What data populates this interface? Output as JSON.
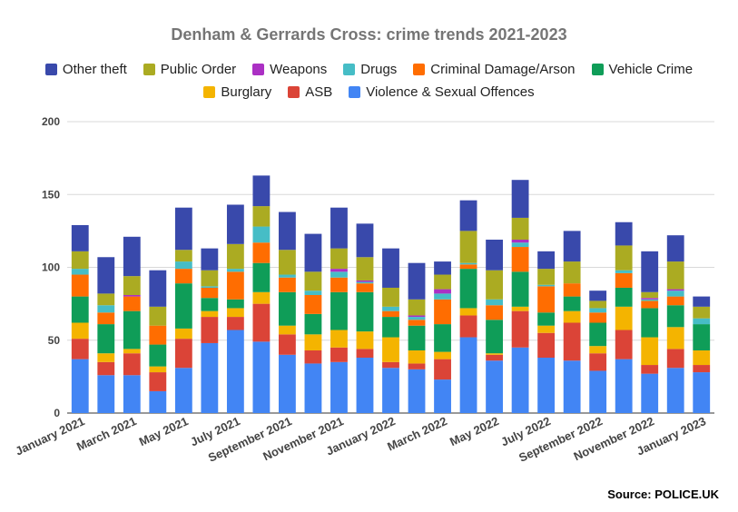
{
  "chart_data": {
    "type": "bar",
    "stacked": true,
    "title": "Denham & Gerrards Cross: crime trends 2021-2023",
    "categories": [
      "January 2021",
      "February 2021",
      "March 2021",
      "April 2021",
      "May 2021",
      "June 2021",
      "July 2021",
      "August 2021",
      "September 2021",
      "October 2021",
      "November 2021",
      "December 2021",
      "January 2022",
      "February 2022",
      "March 2022",
      "April 2022",
      "May 2022",
      "June 2022",
      "July 2022",
      "August 2022",
      "September 2022",
      "October 2022",
      "November 2022",
      "December 2022",
      "January 2023"
    ],
    "shown_tick_labels": [
      "January 2021",
      "March 2021",
      "May 2021",
      "July 2021",
      "September 2021",
      "November 2021",
      "January 2022",
      "March 2022",
      "May 2022",
      "July 2022",
      "September 2022",
      "November 2022",
      "January 2023"
    ],
    "ylim": [
      0,
      200
    ],
    "yticks": [
      0,
      50,
      100,
      150,
      200
    ],
    "grid": true,
    "legend_position": "top",
    "series": [
      {
        "name": "Violence & Sexual Offences",
        "color": "#4285f4",
        "values": [
          37,
          26,
          26,
          15,
          31,
          48,
          57,
          49,
          40,
          34,
          35,
          38,
          31,
          30,
          23,
          52,
          36,
          45,
          38,
          36,
          29,
          37,
          27,
          31,
          28
        ]
      },
      {
        "name": "ASB",
        "color": "#db4437",
        "values": [
          14,
          9,
          15,
          13,
          20,
          18,
          9,
          26,
          14,
          9,
          10,
          6,
          4,
          4,
          14,
          15,
          4,
          25,
          17,
          26,
          12,
          20,
          6,
          13,
          5
        ]
      },
      {
        "name": "Burglary",
        "color": "#f4b400",
        "values": [
          11,
          6,
          3,
          4,
          7,
          4,
          6,
          8,
          6,
          11,
          12,
          12,
          17,
          9,
          5,
          5,
          1,
          3,
          5,
          8,
          5,
          16,
          19,
          15,
          10
        ]
      },
      {
        "name": "Vehicle Crime",
        "color": "#0f9d58",
        "values": [
          18,
          20,
          26,
          15,
          31,
          9,
          6,
          20,
          23,
          14,
          26,
          27,
          14,
          17,
          19,
          27,
          23,
          24,
          9,
          10,
          16,
          13,
          20,
          15,
          18
        ]
      },
      {
        "name": "Criminal Damage/Arson",
        "color": "#ff6d01",
        "values": [
          15,
          8,
          10,
          13,
          10,
          7,
          19,
          14,
          10,
          13,
          10,
          6,
          4,
          4,
          17,
          3,
          10,
          17,
          18,
          9,
          7,
          10,
          5,
          6,
          0
        ]
      },
      {
        "name": "Drugs",
        "color": "#46bdc6",
        "values": [
          4,
          5,
          0,
          0,
          5,
          1,
          2,
          11,
          2,
          3,
          4,
          1,
          3,
          2,
          4,
          1,
          4,
          3,
          1,
          0,
          3,
          2,
          1,
          4,
          4
        ]
      },
      {
        "name": "Weapons",
        "color": "#ab30c4",
        "values": [
          0,
          0,
          1,
          0,
          0,
          0,
          0,
          0,
          0,
          0,
          2,
          1,
          0,
          1,
          3,
          0,
          0,
          2,
          0,
          0,
          0,
          0,
          1,
          1,
          0
        ]
      },
      {
        "name": "Public Order",
        "color": "#abab22",
        "values": [
          12,
          8,
          13,
          13,
          8,
          11,
          17,
          14,
          17,
          13,
          14,
          16,
          13,
          11,
          10,
          22,
          20,
          15,
          11,
          15,
          5,
          17,
          4,
          19,
          8
        ]
      },
      {
        "name": "Other theft",
        "color": "#3949ab",
        "values": [
          18,
          25,
          27,
          25,
          29,
          15,
          27,
          21,
          26,
          26,
          28,
          23,
          27,
          25,
          9,
          21,
          21,
          26,
          12,
          21,
          7,
          16,
          28,
          18,
          7
        ]
      }
    ],
    "legend_rows": [
      [
        "Other theft",
        "Public Order",
        "Weapons",
        "Drugs",
        "Criminal Damage/Arson",
        "Vehicle Crime"
      ],
      [
        "Burglary",
        "ASB",
        "Violence & Sexual Offences"
      ]
    ]
  },
  "source_label": "Source: POLICE.UK"
}
